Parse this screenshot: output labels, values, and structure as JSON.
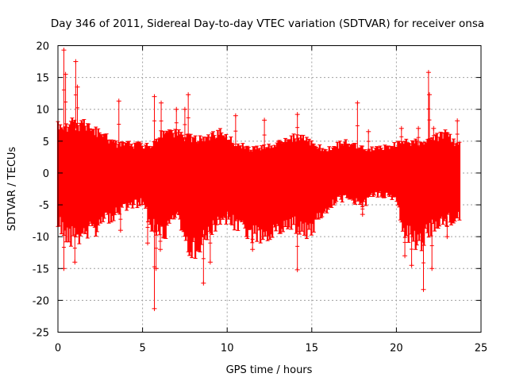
{
  "chart_data": {
    "type": "scatter",
    "title": "Day 346 of 2011, Sidereal Day-to-day VTEC variation (SDTVAR) for receiver onsa",
    "xlabel": "GPS time / hours",
    "ylabel": "SDTVAR / TECUs",
    "xlim": [
      0,
      25
    ],
    "ylim": [
      -25,
      20
    ],
    "xticks": [
      "0",
      "5",
      "10",
      "15",
      "20",
      "25"
    ],
    "yticks": [
      "20",
      "15",
      "10",
      "5",
      "0",
      "-5",
      "-10",
      "-15",
      "-20",
      "-25"
    ],
    "grid": true,
    "series_color": "#ff0000",
    "marker": "+",
    "envelope": {
      "x": [
        0.0,
        0.5,
        1.0,
        1.5,
        2.0,
        2.5,
        3.0,
        3.5,
        4.0,
        4.5,
        5.0,
        5.5,
        6.0,
        6.5,
        7.0,
        7.5,
        8.0,
        8.5,
        9.0,
        9.5,
        10.0,
        10.5,
        11.0,
        11.5,
        12.0,
        12.5,
        13.0,
        13.5,
        14.0,
        14.5,
        15.0,
        15.5,
        16.0,
        16.5,
        17.0,
        17.5,
        18.0,
        18.5,
        19.0,
        19.5,
        20.0,
        20.5,
        21.0,
        21.5,
        22.0,
        22.5,
        23.0,
        23.5,
        23.8
      ],
      "upper": [
        8.5,
        8.5,
        8.8,
        8.5,
        8.0,
        7.0,
        6.0,
        5.0,
        5.0,
        5.0,
        5.0,
        4.8,
        6.5,
        7.5,
        7.2,
        6.5,
        6.0,
        6.0,
        6.5,
        7.2,
        6.5,
        5.2,
        5.0,
        4.2,
        4.5,
        4.6,
        5.0,
        5.8,
        6.5,
        6.0,
        5.5,
        4.5,
        4.2,
        4.8,
        5.5,
        5.0,
        4.5,
        4.2,
        4.3,
        4.5,
        5.0,
        5.8,
        5.5,
        5.0,
        5.5,
        6.5,
        7.0,
        5.0,
        5.0
      ],
      "lower": [
        -9.0,
        -11.0,
        -12.0,
        -11.0,
        -10.5,
        -9.5,
        -8.0,
        -7.5,
        -6.0,
        -5.5,
        -5.5,
        -9.0,
        -12.0,
        -10.0,
        -8.0,
        -12.0,
        -14.0,
        -12.5,
        -10.0,
        -9.0,
        -8.5,
        -9.5,
        -10.0,
        -11.0,
        -12.0,
        -11.0,
        -10.0,
        -9.0,
        -9.5,
        -10.5,
        -10.0,
        -7.5,
        -6.0,
        -5.0,
        -4.5,
        -5.0,
        -6.0,
        -4.0,
        -4.0,
        -4.0,
        -4.5,
        -11.0,
        -12.0,
        -13.0,
        -10.0,
        -9.0,
        -8.5,
        -8.0,
        -8.0
      ]
    },
    "spikes": [
      {
        "x": 0.35,
        "y": 19.3
      },
      {
        "x": 0.35,
        "y": -15.0
      },
      {
        "x": 0.45,
        "y": 15.5
      },
      {
        "x": 1.05,
        "y": 17.5
      },
      {
        "x": 1.15,
        "y": 13.5
      },
      {
        "x": 1.0,
        "y": -14.0
      },
      {
        "x": 3.6,
        "y": 11.3
      },
      {
        "x": 3.7,
        "y": -9.0
      },
      {
        "x": 5.3,
        "y": -11.0
      },
      {
        "x": 5.7,
        "y": 12.0
      },
      {
        "x": 5.8,
        "y": -15.0
      },
      {
        "x": 5.7,
        "y": -21.3
      },
      {
        "x": 6.05,
        "y": -12.0
      },
      {
        "x": 6.1,
        "y": 11.0
      },
      {
        "x": 7.0,
        "y": 10.0
      },
      {
        "x": 7.5,
        "y": 10.0
      },
      {
        "x": 7.7,
        "y": 12.3
      },
      {
        "x": 8.6,
        "y": -17.3
      },
      {
        "x": 9.0,
        "y": -14.0
      },
      {
        "x": 10.5,
        "y": 9.0
      },
      {
        "x": 11.5,
        "y": -12.0
      },
      {
        "x": 12.2,
        "y": 8.3
      },
      {
        "x": 14.15,
        "y": 9.2
      },
      {
        "x": 14.15,
        "y": -15.2
      },
      {
        "x": 17.7,
        "y": 11.0
      },
      {
        "x": 18.0,
        "y": -6.5
      },
      {
        "x": 18.35,
        "y": 6.5
      },
      {
        "x": 20.3,
        "y": 7.0
      },
      {
        "x": 20.5,
        "y": -13.0
      },
      {
        "x": 20.9,
        "y": -14.5
      },
      {
        "x": 21.3,
        "y": 7.0
      },
      {
        "x": 21.6,
        "y": -18.3
      },
      {
        "x": 21.9,
        "y": 15.8
      },
      {
        "x": 21.95,
        "y": 12.3
      },
      {
        "x": 22.1,
        "y": -15.0
      },
      {
        "x": 22.2,
        "y": 7.0
      },
      {
        "x": 23.0,
        "y": -10.0
      },
      {
        "x": 23.6,
        "y": 8.2
      }
    ]
  }
}
